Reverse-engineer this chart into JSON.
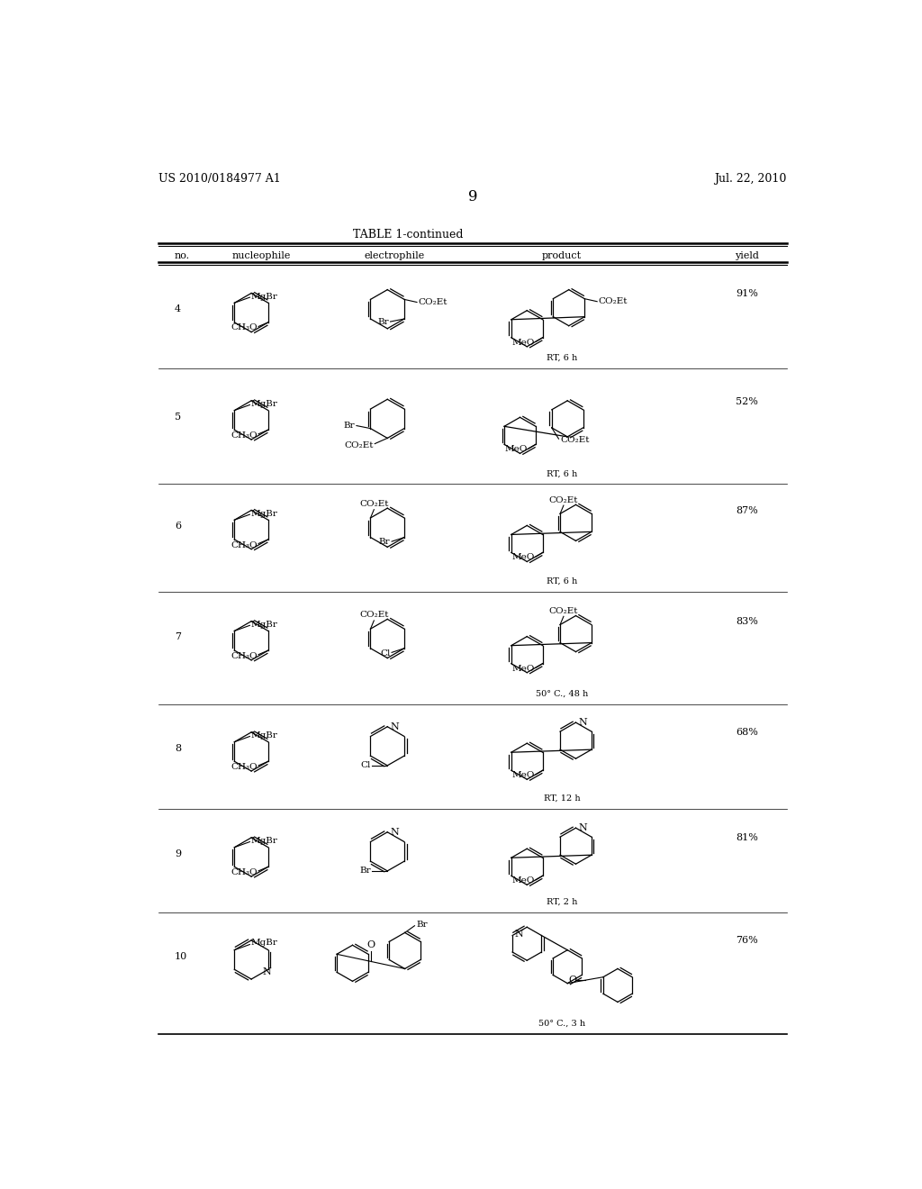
{
  "page_number": "9",
  "patent_number": "US 2010/0184977 A1",
  "patent_date": "Jul. 22, 2010",
  "table_title": "TABLE 1-continued",
  "headers": [
    "no.",
    "nucleophile",
    "electrophile",
    "product",
    "yield"
  ],
  "background_color": "#ffffff",
  "text_color": "#000000",
  "rows": [
    {
      "no": "4",
      "yield": "91%",
      "condition": "RT, 6 h"
    },
    {
      "no": "5",
      "yield": "52%",
      "condition": "RT, 6 h"
    },
    {
      "no": "6",
      "yield": "87%",
      "condition": "RT, 6 h"
    },
    {
      "no": "7",
      "yield": "83%",
      "condition": "50° C., 48 h"
    },
    {
      "no": "8",
      "yield": "68%",
      "condition": "RT, 12 h"
    },
    {
      "no": "9",
      "yield": "81%",
      "condition": "RT, 2 h"
    },
    {
      "no": "10",
      "yield": "76%",
      "condition": "50° C., 3 h"
    }
  ]
}
